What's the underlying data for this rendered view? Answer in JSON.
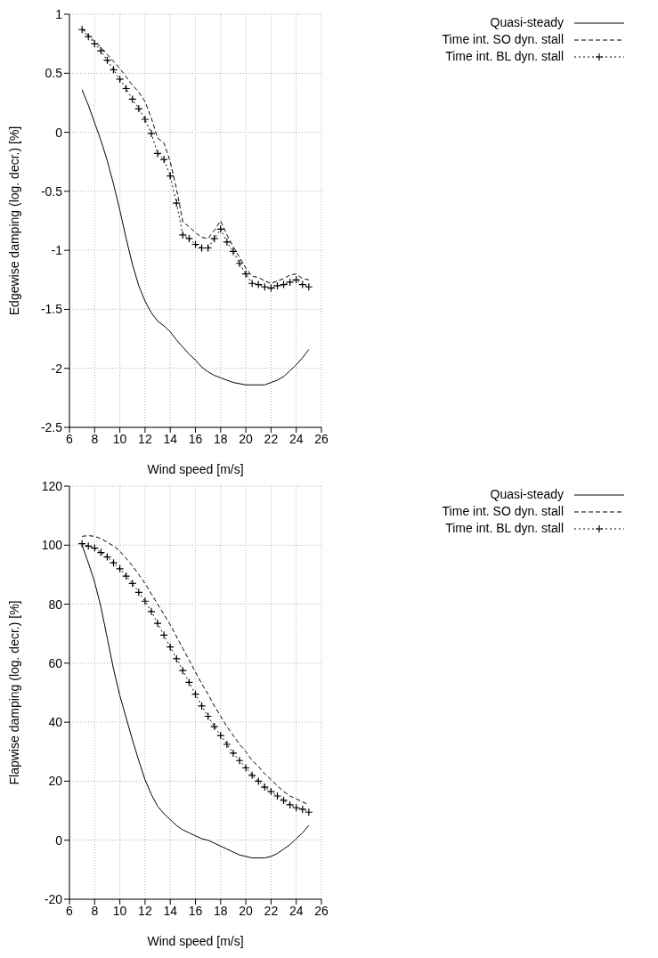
{
  "chart_data": [
    {
      "type": "line",
      "xlabel": "Wind speed [m/s]",
      "ylabel": "Edgewise damping (log. decr.) [%]",
      "x": [
        7,
        7.5,
        8,
        8.5,
        9,
        9.5,
        10,
        10.5,
        11,
        11.5,
        12,
        12.5,
        13,
        13.5,
        14,
        14.5,
        15,
        15.5,
        16,
        16.5,
        17,
        17.5,
        18,
        18.5,
        19,
        19.5,
        20,
        20.5,
        21,
        21.5,
        22,
        22.5,
        23,
        23.5,
        24,
        24.5,
        25
      ],
      "series": [
        {
          "name": "Quasi-steady",
          "color": "#000000",
          "line_style": "solid",
          "values": [
            0.36,
            0.23,
            0.08,
            -0.07,
            -0.24,
            -0.44,
            -0.66,
            -0.9,
            -1.12,
            -1.3,
            -1.43,
            -1.53,
            -1.6,
            -1.64,
            -1.69,
            -1.76,
            -1.82,
            -1.88,
            -1.93,
            -1.99,
            -2.03,
            -2.06,
            -2.08,
            -2.1,
            -2.12,
            -2.13,
            -2.14,
            -2.14,
            -2.14,
            -2.14,
            -2.12,
            -2.1,
            -2.07,
            -2.02,
            -1.97,
            -1.91,
            -1.84
          ]
        },
        {
          "name": "Time int. SO dyn. stall",
          "color": "#000000",
          "line_style": "dashed",
          "values": [
            0.88,
            0.82,
            0.77,
            0.72,
            0.66,
            0.6,
            0.54,
            0.47,
            0.4,
            0.34,
            0.26,
            0.12,
            -0.05,
            -0.09,
            -0.25,
            -0.48,
            -0.76,
            -0.8,
            -0.85,
            -0.89,
            -0.9,
            -0.83,
            -0.75,
            -0.87,
            -0.97,
            -1.06,
            -1.15,
            -1.22,
            -1.23,
            -1.26,
            -1.28,
            -1.26,
            -1.24,
            -1.21,
            -1.2,
            -1.24,
            -1.25
          ]
        },
        {
          "name": "Time int. BL dyn. stall",
          "color": "#000000",
          "line_style": "dotted",
          "marker": "cross",
          "values": [
            0.87,
            0.81,
            0.75,
            0.69,
            0.61,
            0.53,
            0.45,
            0.37,
            0.28,
            0.2,
            0.11,
            -0.01,
            -0.18,
            -0.23,
            -0.37,
            -0.6,
            -0.87,
            -0.9,
            -0.95,
            -0.98,
            -0.98,
            -0.9,
            -0.82,
            -0.93,
            -1.01,
            -1.11,
            -1.2,
            -1.28,
            -1.29,
            -1.31,
            -1.32,
            -1.3,
            -1.29,
            -1.27,
            -1.25,
            -1.29,
            -1.31
          ]
        }
      ],
      "xlim": [
        6,
        26
      ],
      "xticks": [
        6,
        8,
        10,
        12,
        14,
        16,
        18,
        20,
        22,
        24,
        26
      ],
      "ylim": [
        -2.5,
        1
      ],
      "yticks": [
        -2.5,
        -2,
        -1.5,
        -1,
        -0.5,
        0,
        0.5,
        1
      ],
      "grid": true,
      "legend": "top right"
    },
    {
      "type": "line",
      "xlabel": "Wind speed [m/s]",
      "ylabel": "Flapwise damping (log. decr.) [%]",
      "x": [
        7,
        7.5,
        8,
        8.5,
        9,
        9.5,
        10,
        10.5,
        11,
        11.5,
        12,
        12.5,
        13,
        13.5,
        14,
        14.5,
        15,
        15.5,
        16,
        16.5,
        17,
        17.5,
        18,
        18.5,
        19,
        19.5,
        20,
        20.5,
        21,
        21.5,
        22,
        22.5,
        23,
        23.5,
        24,
        24.5,
        25
      ],
      "series": [
        {
          "name": "Quasi-steady",
          "color": "#000000",
          "line_style": "solid",
          "values": [
            100,
            94,
            87.5,
            79,
            68.5,
            58,
            49,
            41.5,
            34,
            27,
            20.5,
            15.5,
            11.5,
            9,
            7,
            5,
            3.5,
            2.5,
            1.5,
            0.5,
            0,
            -1,
            -2,
            -3,
            -4,
            -5,
            -5.5,
            -6,
            -6,
            -6,
            -5.5,
            -4.5,
            -3,
            -1.5,
            0.5,
            2.5,
            5
          ]
        },
        {
          "name": "Time int. SO dyn. stall",
          "color": "#000000",
          "line_style": "dashed",
          "values": [
            103,
            103.2,
            103,
            102.2,
            101,
            99.7,
            98,
            95.5,
            93,
            90,
            87,
            83.5,
            80,
            76.5,
            73,
            69,
            65,
            61,
            57,
            53,
            49.5,
            45.5,
            42,
            38.5,
            35.5,
            32.5,
            30,
            27,
            25,
            22.5,
            20.5,
            18.5,
            16.5,
            15,
            14,
            13,
            12
          ]
        },
        {
          "name": "Time int. BL dyn. stall",
          "color": "#000000",
          "line_style": "dotted",
          "marker": "cross",
          "values": [
            100.5,
            99.7,
            99,
            97.5,
            96,
            94,
            92,
            89.5,
            87,
            84,
            81,
            77.5,
            73.5,
            69.5,
            65.5,
            61.5,
            57.5,
            53.5,
            49.5,
            45.5,
            42,
            38.5,
            35.5,
            32.5,
            29.5,
            27,
            24.5,
            22,
            20,
            18,
            16.5,
            15,
            13.5,
            12,
            11,
            10.5,
            9.5
          ]
        }
      ],
      "xlim": [
        6,
        26
      ],
      "xticks": [
        6,
        8,
        10,
        12,
        14,
        16,
        18,
        20,
        22,
        24,
        26
      ],
      "ylim": [
        -20,
        120
      ],
      "yticks": [
        -20,
        0,
        20,
        40,
        60,
        80,
        100,
        120
      ],
      "grid": true,
      "legend": "top right"
    }
  ]
}
